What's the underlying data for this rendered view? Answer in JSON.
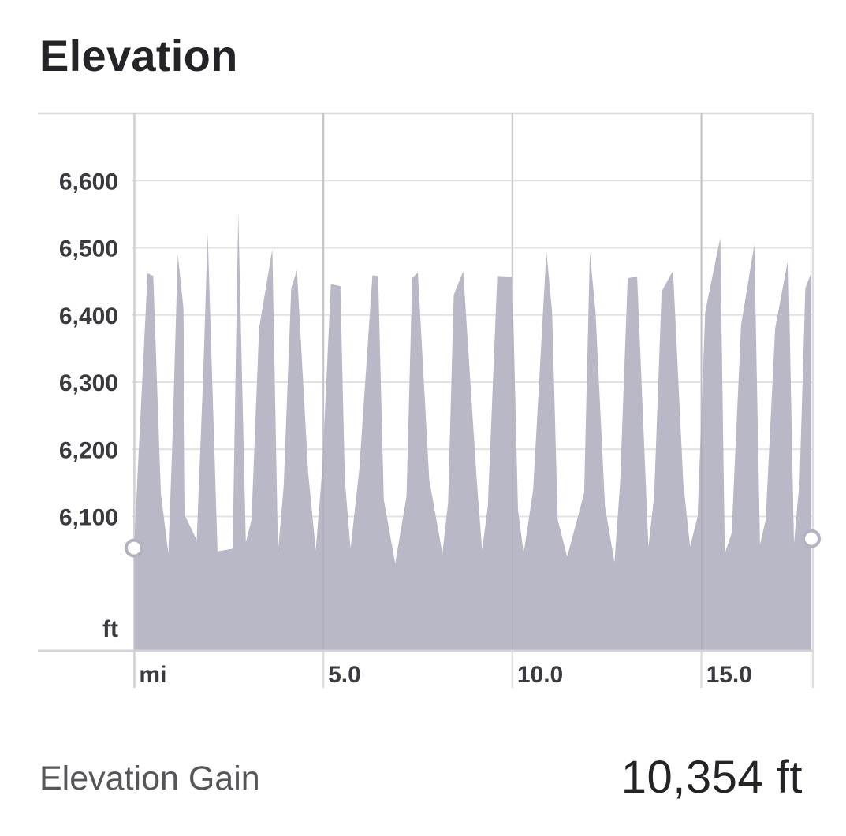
{
  "header": {
    "title": "Elevation"
  },
  "stats": {
    "elevation_gain_label": "Elevation Gain",
    "elevation_gain_value": "10,354 ft"
  },
  "chart_data": {
    "type": "area",
    "title": "Elevation",
    "xlabel": "mi",
    "ylabel": "ft",
    "xlim": [
      -0.05,
      17.95
    ],
    "ylim": [
      5900,
      6700
    ],
    "y_ticks": [
      6100,
      6200,
      6300,
      6400,
      6500,
      6600
    ],
    "y_tick_labels": [
      "6,100",
      "6,200",
      "6,300",
      "6,400",
      "6,500",
      "6,600"
    ],
    "x_ticks": [
      0,
      5,
      10,
      15
    ],
    "x_tick_labels": [
      "mi",
      "5.0",
      "10.0",
      "15.0"
    ],
    "grid": true,
    "fill_color": "#b9b8c6",
    "series": [
      {
        "name": "",
        "x": [
          0.0,
          0.1,
          0.35,
          0.5,
          0.7,
          0.9,
          1.0,
          1.15,
          1.3,
          1.35,
          1.65,
          1.82,
          1.94,
          2.2,
          2.6,
          2.75,
          2.95,
          3.1,
          3.3,
          3.65,
          3.8,
          3.95,
          4.15,
          4.3,
          4.6,
          4.8,
          4.97,
          5.2,
          5.45,
          5.57,
          5.72,
          5.95,
          6.3,
          6.45,
          6.6,
          6.9,
          7.2,
          7.35,
          7.5,
          7.8,
          8.15,
          8.3,
          8.45,
          8.7,
          9.05,
          9.2,
          9.35,
          9.6,
          10.0,
          10.15,
          10.3,
          10.55,
          10.9,
          11.05,
          11.2,
          11.45,
          11.9,
          12.05,
          12.2,
          12.45,
          12.7,
          12.85,
          13.05,
          13.3,
          13.6,
          13.75,
          13.95,
          14.25,
          14.52,
          14.7,
          14.9,
          15.1,
          15.5,
          15.62,
          15.8,
          16.05,
          16.4,
          16.55,
          16.7,
          16.95,
          17.3,
          17.45,
          17.6,
          17.75,
          17.9
        ],
        "y": [
          6060,
          6180,
          6462,
          6458,
          6135,
          6045,
          6200,
          6490,
          6410,
          6100,
          6065,
          6310,
          6522,
          6048,
          6052,
          6553,
          6062,
          6095,
          6380,
          6498,
          6048,
          6145,
          6440,
          6467,
          6165,
          6050,
          6170,
          6446,
          6443,
          6155,
          6052,
          6170,
          6459,
          6458,
          6125,
          6030,
          6130,
          6455,
          6463,
          6155,
          6045,
          6120,
          6430,
          6465,
          6160,
          6050,
          6115,
          6458,
          6457,
          6110,
          6045,
          6140,
          6495,
          6405,
          6095,
          6040,
          6135,
          6493,
          6405,
          6115,
          6032,
          6150,
          6455,
          6457,
          6055,
          6130,
          6435,
          6466,
          6150,
          6055,
          6100,
          6405,
          6515,
          6045,
          6075,
          6385,
          6505,
          6058,
          6095,
          6380,
          6485,
          6060,
          6155,
          6440,
          6462
        ]
      }
    ],
    "markers": [
      {
        "x": 0.0,
        "y": 6053
      },
      {
        "x": 17.95,
        "y": 6067
      }
    ]
  }
}
